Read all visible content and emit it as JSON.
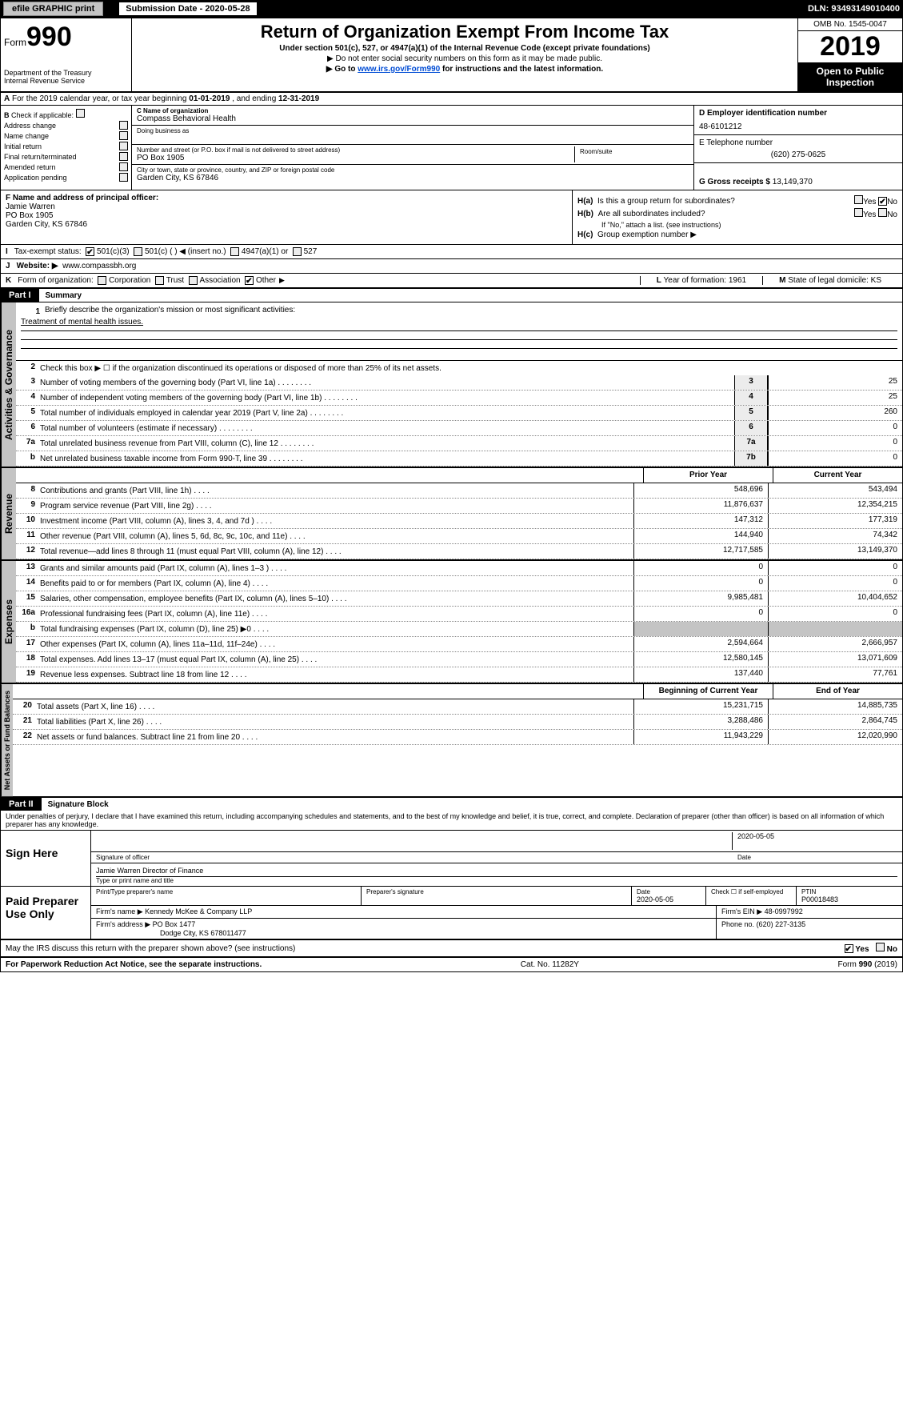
{
  "header": {
    "efile": "efile GRAPHIC print",
    "submission": "Submission Date - 2020-05-28",
    "dln": "DLN: 93493149010400"
  },
  "form_head": {
    "form_label": "Form",
    "form_num": "990",
    "dept": "Department of the Treasury\nInternal Revenue Service",
    "title": "Return of Organization Exempt From Income Tax",
    "sub": "Under section 501(c), 527, or 4947(a)(1) of the Internal Revenue Code (except private foundations)",
    "sub2": "▶ Do not enter social security numbers on this form as it may be made public.",
    "link_pre": "▶ Go to ",
    "link": "www.irs.gov/Form990",
    "link_post": " for instructions and the latest information.",
    "omb": "OMB No. 1545-0047",
    "year": "2019",
    "open": "Open to Public Inspection"
  },
  "row_a": {
    "label": "A",
    "text_pre": "For the 2019 calendar year, or tax year beginning ",
    "begin": "01-01-2019",
    "mid": " , and ending ",
    "end": "12-31-2019"
  },
  "col_b": {
    "label": "B",
    "check_if": "Check if applicable:",
    "items": [
      "Address change",
      "Name change",
      "Initial return",
      "Final return/terminated",
      "Amended return",
      "Application pending"
    ]
  },
  "col_c": {
    "name_label": "C Name of organization",
    "name": "Compass Behavioral Health",
    "dba_label": "Doing business as",
    "addr_label": "Number and street (or P.O. box if mail is not delivered to street address)",
    "addr": "PO Box 1905",
    "room_label": "Room/suite",
    "city_label": "City or town, state or province, country, and ZIP or foreign postal code",
    "city": "Garden City, KS  67846"
  },
  "col_d": {
    "ein_label": "D Employer identification number",
    "ein": "48-6101212",
    "phone_label": "E Telephone number",
    "phone": "(620) 275-0625",
    "gross_label": "G Gross receipts $",
    "gross": "13,149,370"
  },
  "col_f": {
    "label": "F Name and address of principal officer:",
    "name": "Jamie Warren",
    "addr1": "PO Box 1905",
    "addr2": "Garden City, KS  67846"
  },
  "col_h": {
    "ha": "H(a)",
    "ha_text": "Is this a group return for subordinates?",
    "hb": "H(b)",
    "hb_text": "Are all subordinates included?",
    "hb_note": "If \"No,\" attach a list. (see instructions)",
    "hc": "H(c)",
    "hc_text": "Group exemption number ▶",
    "yes": "Yes",
    "no": "No"
  },
  "row_i": {
    "label": "I",
    "text": "Tax-exempt status:",
    "opt1": "501(c)(3)",
    "opt2": "501(c) (  ) ◀ (insert no.)",
    "opt3": "4947(a)(1) or",
    "opt4": "527"
  },
  "row_j": {
    "label": "J",
    "text": "Website: ▶",
    "val": "www.compassbh.org"
  },
  "row_k": {
    "label": "K",
    "text": "Form of organization:",
    "opts": [
      "Corporation",
      "Trust",
      "Association",
      "Other"
    ],
    "l_label": "L",
    "l_text": "Year of formation:",
    "l_val": "1961",
    "m_label": "M",
    "m_text": "State of legal domicile:",
    "m_val": "KS"
  },
  "part1": {
    "label": "Part I",
    "title": "Summary"
  },
  "governance": {
    "label": "Activities & Governance",
    "l1_pre": "Briefly describe the organization's mission or most significant activities:",
    "l1_val": "Treatment of mental health issues.",
    "l2": "Check this box ▶ ☐ if the organization discontinued its operations or disposed of more than 25% of its net assets.",
    "rows": [
      {
        "n": "3",
        "t": "Number of voting members of the governing body (Part VI, line 1a)",
        "box": "3",
        "v": "25"
      },
      {
        "n": "4",
        "t": "Number of independent voting members of the governing body (Part VI, line 1b)",
        "box": "4",
        "v": "25"
      },
      {
        "n": "5",
        "t": "Total number of individuals employed in calendar year 2019 (Part V, line 2a)",
        "box": "5",
        "v": "260"
      },
      {
        "n": "6",
        "t": "Total number of volunteers (estimate if necessary)",
        "box": "6",
        "v": "0"
      },
      {
        "n": "7a",
        "t": "Total unrelated business revenue from Part VIII, column (C), line 12",
        "box": "7a",
        "v": "0"
      },
      {
        "n": "b",
        "t": "Net unrelated business taxable income from Form 990-T, line 39",
        "box": "7b",
        "v": "0"
      }
    ]
  },
  "two_col_header": {
    "prior": "Prior Year",
    "current": "Current Year"
  },
  "revenue": {
    "label": "Revenue",
    "rows": [
      {
        "n": "8",
        "t": "Contributions and grants (Part VIII, line 1h)",
        "p": "548,696",
        "c": "543,494"
      },
      {
        "n": "9",
        "t": "Program service revenue (Part VIII, line 2g)",
        "p": "11,876,637",
        "c": "12,354,215"
      },
      {
        "n": "10",
        "t": "Investment income (Part VIII, column (A), lines 3, 4, and 7d )",
        "p": "147,312",
        "c": "177,319"
      },
      {
        "n": "11",
        "t": "Other revenue (Part VIII, column (A), lines 5, 6d, 8c, 9c, 10c, and 11e)",
        "p": "144,940",
        "c": "74,342"
      },
      {
        "n": "12",
        "t": "Total revenue—add lines 8 through 11 (must equal Part VIII, column (A), line 12)",
        "p": "12,717,585",
        "c": "13,149,370"
      }
    ]
  },
  "expenses": {
    "label": "Expenses",
    "rows": [
      {
        "n": "13",
        "t": "Grants and similar amounts paid (Part IX, column (A), lines 1–3 )",
        "p": "0",
        "c": "0"
      },
      {
        "n": "14",
        "t": "Benefits paid to or for members (Part IX, column (A), line 4)",
        "p": "0",
        "c": "0"
      },
      {
        "n": "15",
        "t": "Salaries, other compensation, employee benefits (Part IX, column (A), lines 5–10)",
        "p": "9,985,481",
        "c": "10,404,652"
      },
      {
        "n": "16a",
        "t": "Professional fundraising fees (Part IX, column (A), line 11e)",
        "p": "0",
        "c": "0"
      },
      {
        "n": "b",
        "t": "Total fundraising expenses (Part IX, column (D), line 25) ▶0",
        "p": "gray",
        "c": "gray"
      },
      {
        "n": "17",
        "t": "Other expenses (Part IX, column (A), lines 11a–11d, 11f–24e)",
        "p": "2,594,664",
        "c": "2,666,957"
      },
      {
        "n": "18",
        "t": "Total expenses. Add lines 13–17 (must equal Part IX, column (A), line 25)",
        "p": "12,580,145",
        "c": "13,071,609"
      },
      {
        "n": "19",
        "t": "Revenue less expenses. Subtract line 18 from line 12",
        "p": "137,440",
        "c": "77,761"
      }
    ]
  },
  "net_header": {
    "begin": "Beginning of Current Year",
    "end": "End of Year"
  },
  "net": {
    "label": "Net Assets or Fund Balances",
    "rows": [
      {
        "n": "20",
        "t": "Total assets (Part X, line 16)",
        "p": "15,231,715",
        "c": "14,885,735"
      },
      {
        "n": "21",
        "t": "Total liabilities (Part X, line 26)",
        "p": "3,288,486",
        "c": "2,864,745"
      },
      {
        "n": "22",
        "t": "Net assets or fund balances. Subtract line 21 from line 20",
        "p": "11,943,229",
        "c": "12,020,990"
      }
    ]
  },
  "part2": {
    "label": "Part II",
    "title": "Signature Block"
  },
  "perjury": "Under penalties of perjury, I declare that I have examined this return, including accompanying schedules and statements, and to the best of my knowledge and belief, it is true, correct, and complete. Declaration of preparer (other than officer) is based on all information of which preparer has any knowledge.",
  "sign": {
    "label": "Sign Here",
    "sig_label": "Signature of officer",
    "date": "2020-05-05",
    "date_label": "Date",
    "name": "Jamie Warren Director of Finance",
    "name_label": "Type or print name and title"
  },
  "paid": {
    "label": "Paid Preparer Use Only",
    "h1": "Print/Type preparer's name",
    "h2": "Preparer's signature",
    "h3": "Date",
    "h3v": "2020-05-05",
    "h4": "Check ☐ if self-employed",
    "h5": "PTIN",
    "h5v": "P00018483",
    "firm_label": "Firm's name    ▶",
    "firm": "Kennedy McKee & Company LLP",
    "ein_label": "Firm's EIN ▶",
    "ein": "48-0997992",
    "addr_label": "Firm's address ▶",
    "addr1": "PO Box 1477",
    "addr2": "Dodge City, KS  678011477",
    "phone_label": "Phone no.",
    "phone": "(620) 227-3135"
  },
  "discuss": {
    "text": "May the IRS discuss this return with the preparer shown above? (see instructions)",
    "yes": "Yes",
    "no": "No"
  },
  "footer": {
    "left": "For Paperwork Reduction Act Notice, see the separate instructions.",
    "mid": "Cat. No. 11282Y",
    "right_pre": "Form ",
    "right_num": "990",
    "right_post": " (2019)"
  }
}
